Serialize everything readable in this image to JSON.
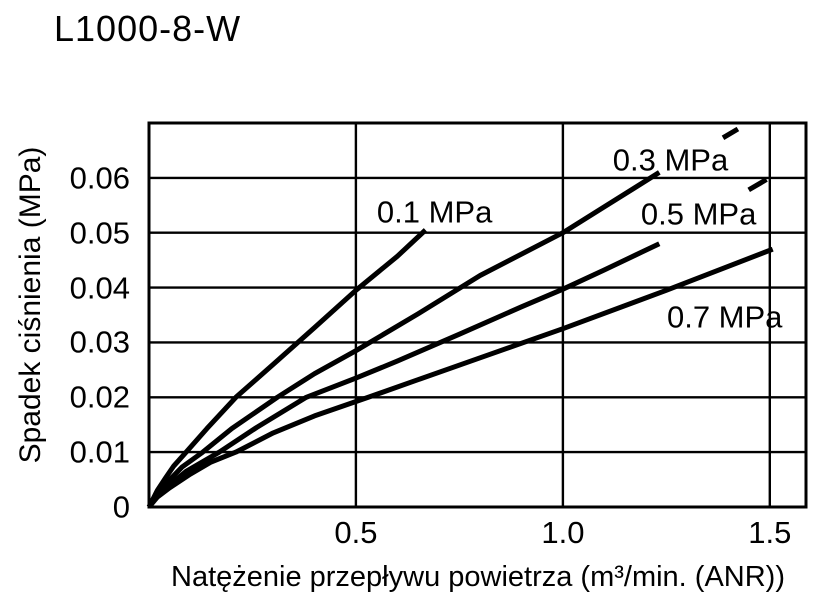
{
  "title": "L1000-8-W",
  "chart_data": {
    "type": "line",
    "title": "L1000-8-W",
    "xlabel": "Natężenie przepływu powietrza (m³/min. (ANR))",
    "ylabel": "Spadek ciśnienia (MPa)",
    "xlim": [
      0,
      1.5875
    ],
    "ylim": [
      0,
      0.07
    ],
    "grid": true,
    "legend_position": "inline-annotations",
    "line_color": "#000000",
    "x_ticks": [
      {
        "value": 0.5,
        "label": "0.5"
      },
      {
        "value": 1.0,
        "label": "1.0"
      },
      {
        "value": 1.5,
        "label": "1.5"
      }
    ],
    "y_ticks": [
      {
        "value": 0,
        "label": "0"
      },
      {
        "value": 0.01,
        "label": "0.01"
      },
      {
        "value": 0.02,
        "label": "0.02"
      },
      {
        "value": 0.03,
        "label": "0.03"
      },
      {
        "value": 0.04,
        "label": "0.04"
      },
      {
        "value": 0.05,
        "label": "0.05"
      },
      {
        "value": 0.06,
        "label": "0.06"
      }
    ],
    "series": [
      {
        "name": "0.1 MPa",
        "label_at": [
          0.69,
          0.0538
        ],
        "points": [
          [
            0,
            0
          ],
          [
            0.02,
            0.003
          ],
          [
            0.04,
            0.0053
          ],
          [
            0.06,
            0.0075
          ],
          [
            0.09,
            0.01
          ],
          [
            0.14,
            0.0143
          ],
          [
            0.21,
            0.02
          ],
          [
            0.3,
            0.026
          ],
          [
            0.4,
            0.0327
          ],
          [
            0.5,
            0.0395
          ],
          [
            0.6,
            0.0457
          ],
          [
            0.668,
            0.0505
          ]
        ]
      },
      {
        "name": "0.3 MPa",
        "label_at": [
          1.26,
          0.0633
        ],
        "points": [
          [
            0,
            0
          ],
          [
            0.02,
            0.0024
          ],
          [
            0.04,
            0.0042
          ],
          [
            0.08,
            0.0073
          ],
          [
            0.13,
            0.01
          ],
          [
            0.2,
            0.0143
          ],
          [
            0.31,
            0.02
          ],
          [
            0.4,
            0.0243
          ],
          [
            0.5,
            0.0285
          ],
          [
            0.65,
            0.0352
          ],
          [
            0.8,
            0.0422
          ],
          [
            1.0,
            0.05
          ],
          [
            1.1,
            0.0547
          ],
          [
            1.233,
            0.061
          ]
        ],
        "dash_points": [
          [
            1.387,
            0.0673
          ],
          [
            1.423,
            0.0689
          ]
        ]
      },
      {
        "name": "0.5 MPa",
        "label_at": [
          1.328,
          0.0535
        ],
        "points": [
          [
            0,
            0
          ],
          [
            0.02,
            0.002
          ],
          [
            0.05,
            0.004
          ],
          [
            0.09,
            0.0065
          ],
          [
            0.17,
            0.01
          ],
          [
            0.26,
            0.0145
          ],
          [
            0.38,
            0.02
          ],
          [
            0.5,
            0.0235
          ],
          [
            0.6,
            0.0266
          ],
          [
            0.75,
            0.0315
          ],
          [
            0.9,
            0.0365
          ],
          [
            1.0,
            0.0397
          ],
          [
            1.1,
            0.0432
          ],
          [
            1.233,
            0.048
          ]
        ],
        "dash_points": [
          [
            1.449,
            0.0578
          ],
          [
            1.492,
            0.0597
          ]
        ]
      },
      {
        "name": "0.7 MPa",
        "label_at": [
          1.391,
          0.0347
        ],
        "points": [
          [
            0,
            0
          ],
          [
            0.02,
            0.0018
          ],
          [
            0.05,
            0.0035
          ],
          [
            0.1,
            0.006
          ],
          [
            0.15,
            0.0082
          ],
          [
            0.21,
            0.01
          ],
          [
            0.3,
            0.0135
          ],
          [
            0.4,
            0.0166
          ],
          [
            0.53,
            0.02
          ],
          [
            0.65,
            0.0232
          ],
          [
            0.8,
            0.0272
          ],
          [
            1.0,
            0.0325
          ],
          [
            1.25,
            0.0395
          ],
          [
            1.507,
            0.047
          ]
        ]
      }
    ]
  }
}
